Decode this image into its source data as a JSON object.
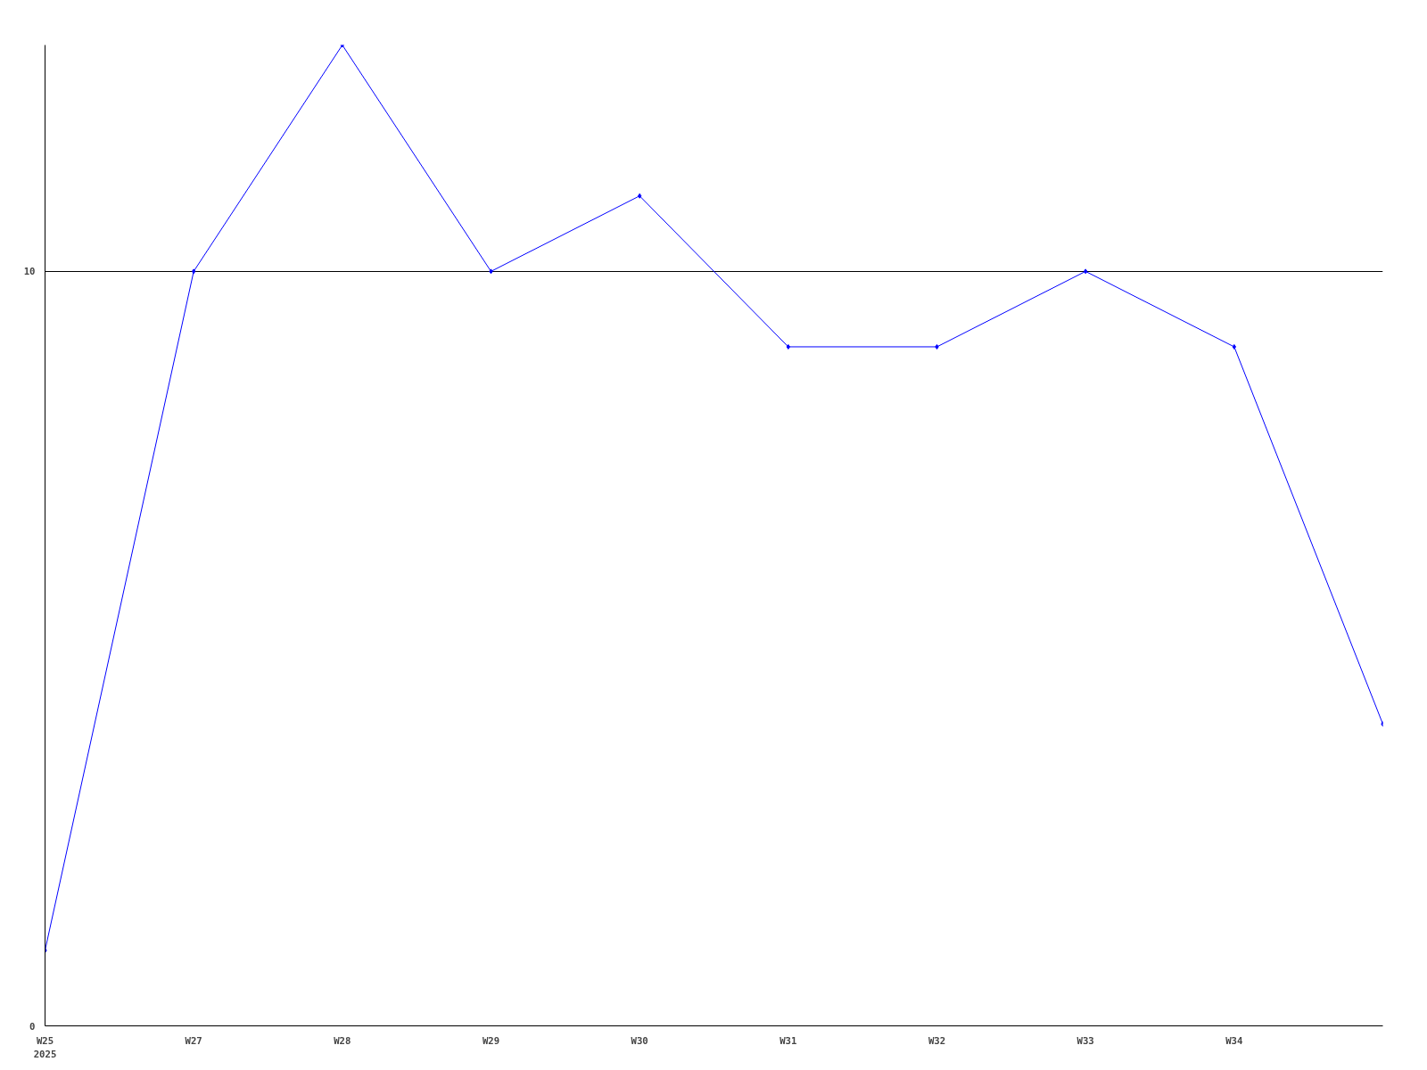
{
  "chart_data": {
    "type": "line",
    "categories": [
      "W25\n2025",
      "W27",
      "W28",
      "W29",
      "W30",
      "W31",
      "W32",
      "W33",
      "W34",
      null
    ],
    "series": [
      {
        "color": "#0000ff",
        "values": [
          1,
          10,
          13,
          10,
          11,
          9,
          9,
          10,
          9,
          4
        ]
      }
    ],
    "ylim": [
      0,
      13
    ],
    "yticks": [
      0,
      10
    ],
    "grid": "y",
    "marker": "diamond",
    "line_style": "solid"
  }
}
